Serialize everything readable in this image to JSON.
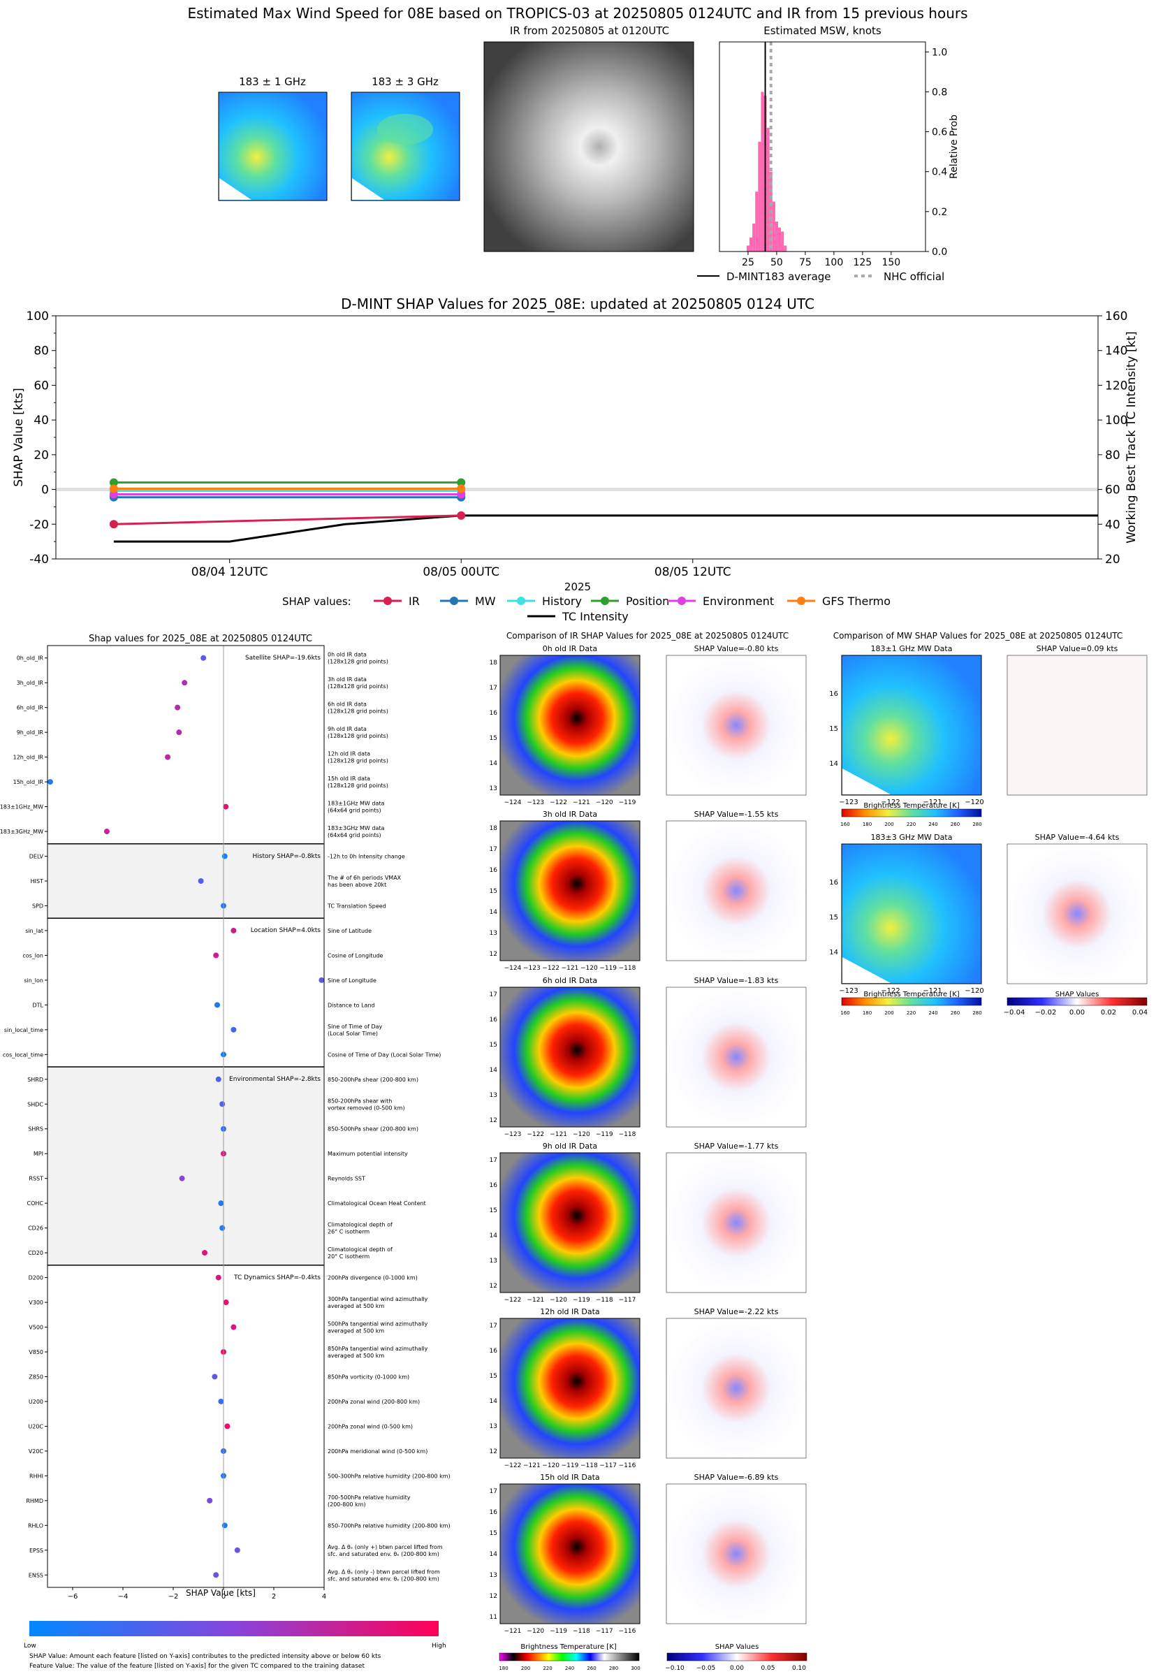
{
  "header": {
    "title": "Estimated Max Wind Speed for 08E based on TROPICS-03 at 20250805 0124UTC and IR from 15 previous hours",
    "mw1_title": "183 ± 1 GHz",
    "mw2_title": "183 ± 3 GHz",
    "ir_title": "IR from 20250805 at 0120UTC",
    "hist_title": "Estimated MSW, knots",
    "hist_ylabel": "Relative Prob",
    "legend_dmint": "D-MINT183 average",
    "legend_nhc": "NHC official"
  },
  "timeline": {
    "title": "D-MINT SHAP Values for 2025_08E: updated at 20250805 0124 UTC",
    "ylabel_left": "SHAP Value [kts]",
    "ylabel_right": "Working Best Track TC Intensity [kt]",
    "year_label": "2025",
    "legend_title": "SHAP values:",
    "legend_tc": "TC Intensity"
  },
  "shap_panel": {
    "title": "Shap values for 2025_08E at 20250805 0124UTC",
    "xlabel": "SHAP Value [kts]",
    "colorbar_low": "Low",
    "colorbar_high": "High",
    "footnote1": "SHAP Value: Amount each feature [listed on Y-axis] contributes to the predicted intensity above or below 60 kts",
    "footnote2": "Feature Value: The value of the feature [listed on Y-axis] for the given TC compared to the training dataset"
  },
  "ir_compare": {
    "title": "Comparison of IR SHAP Values for 2025_08E at 20250805 0124UTC",
    "cbar_bt_label": "Brightness Temperature [K]",
    "cbar_shap_label": "SHAP Values",
    "cbar_bt_ticks": [
      "180",
      "200",
      "220",
      "240",
      "260",
      "280",
      "300"
    ],
    "cbar_shap_ticks": [
      "−0.10",
      "−0.05",
      "0.00",
      "0.05",
      "0.10"
    ],
    "rows": [
      {
        "data_title": "0h old IR Data",
        "shap_title": "SHAP Value=-0.80 kts",
        "yticks": [
          "18",
          "17",
          "16",
          "15",
          "14",
          "13"
        ],
        "xticks": [
          "−124",
          "−123",
          "−122",
          "−121",
          "−120",
          "−119"
        ]
      },
      {
        "data_title": "3h old IR Data",
        "shap_title": "SHAP Value=-1.55 kts",
        "yticks": [
          "18",
          "17",
          "16",
          "15",
          "14",
          "13",
          "12"
        ],
        "xticks": [
          "−124",
          "−123",
          "−122",
          "−121",
          "−120",
          "−119",
          "−118"
        ]
      },
      {
        "data_title": "6h old IR Data",
        "shap_title": "SHAP Value=-1.83 kts",
        "yticks": [
          "17",
          "16",
          "15",
          "14",
          "13",
          "12"
        ],
        "xticks": [
          "−123",
          "−122",
          "−121",
          "−120",
          "−119",
          "−118"
        ]
      },
      {
        "data_title": "9h old IR Data",
        "shap_title": "SHAP Value=-1.77 kts",
        "yticks": [
          "17",
          "16",
          "15",
          "14",
          "13",
          "12"
        ],
        "xticks": [
          "−122",
          "−121",
          "−120",
          "−119",
          "−118",
          "−117"
        ]
      },
      {
        "data_title": "12h old IR Data",
        "shap_title": "SHAP Value=-2.22 kts",
        "yticks": [
          "17",
          "16",
          "15",
          "14",
          "13",
          "12"
        ],
        "xticks": [
          "−122",
          "−121",
          "−120",
          "−119",
          "−118",
          "−117",
          "−116"
        ]
      },
      {
        "data_title": "15h old IR Data",
        "shap_title": "SHAP Value=-6.89 kts",
        "yticks": [
          "17",
          "16",
          "15",
          "14",
          "13",
          "12",
          "11"
        ],
        "xticks": [
          "−121",
          "−120",
          "−119",
          "−118",
          "−117",
          "−116"
        ]
      }
    ]
  },
  "mw_compare": {
    "title": "Comparison of MW SHAP Values for 2025_08E at 20250805 0124UTC",
    "rows": [
      {
        "data_title": "183±1 GHz MW Data",
        "shap_title": "SHAP Value=0.09 kts"
      },
      {
        "data_title": "183±3 GHz MW Data",
        "shap_title": "SHAP Value=-4.64 kts"
      }
    ],
    "yticks": [
      "16",
      "15",
      "14"
    ],
    "xticks": [
      "−123",
      "−122",
      "−121",
      "−120"
    ],
    "cbar_bt_label": "Brightness Temperature [K]",
    "cbar_bt_ticks": [
      "160",
      "180",
      "200",
      "220",
      "240",
      "260",
      "280"
    ],
    "cbar_shap_label": "SHAP Values",
    "cbar_shap_ticks": [
      "−0.04",
      "−0.02",
      "0.00",
      "0.02",
      "0.04"
    ]
  },
  "chart_data": [
    {
      "type": "bar",
      "title": "Estimated MSW, knots",
      "ylabel": "Relative Prob",
      "xlim": [
        0,
        180
      ],
      "ylim": [
        0,
        1.05
      ],
      "xticks": [
        25,
        50,
        75,
        100,
        125,
        150
      ],
      "yticks": [
        0.0,
        0.2,
        0.4,
        0.6,
        0.8,
        1.0
      ],
      "bin_width": 2.5,
      "bins": [
        {
          "x": 25,
          "y": 0.03
        },
        {
          "x": 27.5,
          "y": 0.07
        },
        {
          "x": 30,
          "y": 0.14
        },
        {
          "x": 32.5,
          "y": 0.3
        },
        {
          "x": 35,
          "y": 0.55
        },
        {
          "x": 37.5,
          "y": 0.8
        },
        {
          "x": 40,
          "y": 0.78
        },
        {
          "x": 42.5,
          "y": 0.62
        },
        {
          "x": 45,
          "y": 0.4
        },
        {
          "x": 47.5,
          "y": 0.25
        },
        {
          "x": 50,
          "y": 0.15
        },
        {
          "x": 52.5,
          "y": 0.12
        },
        {
          "x": 55,
          "y": 0.1
        },
        {
          "x": 57.5,
          "y": 0.03
        }
      ],
      "dmint_average": 40,
      "nhc_official": 45,
      "series": [
        {
          "name": "D-MINT183 average",
          "color": "#000000"
        },
        {
          "name": "NHC official",
          "color": "#aaaaaa"
        }
      ]
    },
    {
      "type": "line",
      "title": "D-MINT SHAP Values for 2025_08E: updated at 20250805 0124 UTC",
      "ylabel": "SHAP Value [kts]",
      "y2label": "Working Best Track TC Intensity [kt]",
      "ylim": [
        -40,
        100
      ],
      "y2lim": [
        20,
        160
      ],
      "yticks": [
        -40,
        -20,
        0,
        20,
        40,
        60,
        80,
        100
      ],
      "y2ticks": [
        20,
        40,
        60,
        80,
        100,
        120,
        140,
        160
      ],
      "xlim_hours": [
        -21,
        33
      ],
      "xticks": [
        {
          "h": -12,
          "label": "08/04 12UTC"
        },
        {
          "h": 0,
          "label": "08/05 00UTC"
        },
        {
          "h": 12,
          "label": "08/05 12UTC"
        }
      ],
      "series": [
        {
          "name": "IR",
          "color": "#d62050",
          "points": [
            [
              -18,
              -20
            ],
            [
              0,
              -15
            ]
          ]
        },
        {
          "name": "MW",
          "color": "#1f77b4",
          "points": [
            [
              -18,
              -4.5
            ],
            [
              0,
              -4.5
            ]
          ]
        },
        {
          "name": "History",
          "color": "#3fe0e0",
          "points": [
            [
              -18,
              -0.8
            ],
            [
              0,
              -0.8
            ]
          ]
        },
        {
          "name": "Position",
          "color": "#2ca02c",
          "points": [
            [
              -18,
              4
            ],
            [
              0,
              4
            ]
          ]
        },
        {
          "name": "Environment",
          "color": "#e040e0",
          "points": [
            [
              -18,
              -2.8
            ],
            [
              0,
              -2.8
            ]
          ]
        },
        {
          "name": "GFS Thermo",
          "color": "#ff7f0e",
          "points": [
            [
              -18,
              0.5
            ],
            [
              0,
              0.5
            ]
          ]
        }
      ],
      "tc_intensity": {
        "name": "TC Intensity",
        "color": "#000000",
        "points": [
          [
            -18,
            30
          ],
          [
            -12,
            30
          ],
          [
            -6,
            40
          ],
          [
            0,
            45
          ],
          [
            33,
            45
          ]
        ]
      }
    },
    {
      "type": "scatter",
      "title": "Shap values for 2025_08E at 20250805 0124UTC",
      "xlabel": "SHAP Value [kts]",
      "xlim": [
        -7,
        4
      ],
      "xticks": [
        -6,
        -4,
        -2,
        0,
        2,
        4
      ],
      "groups": [
        {
          "label": "Satellite SHAP=-19.6kts",
          "shaded": false,
          "features": [
            {
              "name": "0h_old_IR",
              "desc": [
                "0h old IR data",
                "(128x128 grid points)"
              ],
              "shap": -0.8,
              "fv": 0.35
            },
            {
              "name": "3h_old_IR",
              "desc": [
                "3h old IR data",
                "(128x128 grid points)"
              ],
              "shap": -1.55,
              "fv": 0.65
            },
            {
              "name": "6h_old_IR",
              "desc": [
                "6h old IR data",
                "(128x128 grid points)"
              ],
              "shap": -1.83,
              "fv": 0.7
            },
            {
              "name": "9h_old_IR",
              "desc": [
                "9h old IR data",
                "(128x128 grid points)"
              ],
              "shap": -1.77,
              "fv": 0.7
            },
            {
              "name": "12h_old_IR",
              "desc": [
                "12h old IR data",
                "(128x128 grid points)"
              ],
              "shap": -2.22,
              "fv": 0.7
            },
            {
              "name": "15h_old_IR",
              "desc": [
                "15h old IR data",
                "(128x128 grid points)"
              ],
              "shap": -6.89,
              "fv": 0.1
            },
            {
              "name": "183±1GHz_MW",
              "desc": [
                "183±1GHz MW data",
                "(64x64 grid points)"
              ],
              "shap": 0.09,
              "fv": 0.9
            },
            {
              "name": "183±3GHz_MW",
              "desc": [
                "183±3GHz MW data",
                "(64x64 grid points)"
              ],
              "shap": -4.64,
              "fv": 0.75
            }
          ]
        },
        {
          "label": "History SHAP=-0.8kts",
          "shaded": true,
          "features": [
            {
              "name": "DELV",
              "desc": [
                "-12h to 0h Intensity change"
              ],
              "shap": 0.05,
              "fv": 0.05
            },
            {
              "name": "HIST",
              "desc": [
                "The # of 6h periods VMAX",
                "has been above 20kt"
              ],
              "shap": -0.9,
              "fv": 0.3
            },
            {
              "name": "SPD",
              "desc": [
                "TC Translation Speed"
              ],
              "shap": 0.0,
              "fv": 0.1
            }
          ]
        },
        {
          "label": "Location SHAP=4.0kts",
          "shaded": false,
          "features": [
            {
              "name": "sin_lat",
              "desc": [
                "Sine of Latitude"
              ],
              "shap": 0.4,
              "fv": 0.8
            },
            {
              "name": "cos_lon",
              "desc": [
                "Cosine of Longitude"
              ],
              "shap": -0.3,
              "fv": 0.8
            },
            {
              "name": "sin_lon",
              "desc": [
                "Sine of Longitude"
              ],
              "shap": 3.9,
              "fv": 0.35
            },
            {
              "name": "DTL",
              "desc": [
                "Distance to Land"
              ],
              "shap": -0.25,
              "fv": 0.1
            },
            {
              "name": "sin_local_time",
              "desc": [
                "Sine of Time of Day",
                "(Local Solar Time)"
              ],
              "shap": 0.4,
              "fv": 0.25
            },
            {
              "name": "cos_local_time",
              "desc": [
                "Cosine of Time of Day (Local Solar Time)"
              ],
              "shap": 0.0,
              "fv": 0.1
            }
          ]
        },
        {
          "label": "Environmental SHAP=-2.8kts",
          "shaded": true,
          "features": [
            {
              "name": "SHRD",
              "desc": [
                "850-200hPa shear (200-800 km)"
              ],
              "shap": -0.2,
              "fv": 0.3
            },
            {
              "name": "SHDC",
              "desc": [
                "850-200hPa shear with",
                "vortex removed (0-500 km)"
              ],
              "shap": -0.05,
              "fv": 0.3
            },
            {
              "name": "SHRS",
              "desc": [
                "850-500hPa shear (200-800 km)"
              ],
              "shap": 0.0,
              "fv": 0.2
            },
            {
              "name": "MPI",
              "desc": [
                "Maximum potential intensity"
              ],
              "shap": 0.0,
              "fv": 0.85
            },
            {
              "name": "RSST",
              "desc": [
                "Reynolds SST"
              ],
              "shap": -1.65,
              "fv": 0.5
            },
            {
              "name": "COHC",
              "desc": [
                "Climatological Ocean Heat Content"
              ],
              "shap": -0.1,
              "fv": 0.1
            },
            {
              "name": "CD26",
              "desc": [
                "Climatological depth of",
                "26° C isotherm"
              ],
              "shap": -0.05,
              "fv": 0.1
            },
            {
              "name": "CD20",
              "desc": [
                "Climatological depth of",
                "20° C isotherm"
              ],
              "shap": -0.75,
              "fv": 0.85
            }
          ]
        },
        {
          "label": "TC Dynamics SHAP=-0.4kts",
          "shaded": false,
          "features": [
            {
              "name": "D200",
              "desc": [
                "200hPa divergence (0-1000 km)"
              ],
              "shap": -0.2,
              "fv": 0.85
            },
            {
              "name": "V300",
              "desc": [
                "300hPa tangential wind azimuthally",
                "averaged at 500 km"
              ],
              "shap": 0.1,
              "fv": 0.9
            },
            {
              "name": "V500",
              "desc": [
                "500hPa tangential wind azimuthally",
                "averaged at 500 km"
              ],
              "shap": 0.4,
              "fv": 0.85
            },
            {
              "name": "V850",
              "desc": [
                "850hPa tangential wind azimuthally",
                "averaged at 500 km"
              ],
              "shap": 0.0,
              "fv": 0.9
            },
            {
              "name": "Z850",
              "desc": [
                "850hPa vorticity (0-1000 km)"
              ],
              "shap": -0.35,
              "fv": 0.35
            },
            {
              "name": "U200",
              "desc": [
                "200hPa zonal wind (200-800 km)"
              ],
              "shap": -0.1,
              "fv": 0.2
            },
            {
              "name": "U20C",
              "desc": [
                "200hPa zonal wind (0-500 km)"
              ],
              "shap": 0.15,
              "fv": 0.9
            },
            {
              "name": "V20C",
              "desc": [
                "200hPa meridional wind (0-500 km)"
              ],
              "shap": 0.0,
              "fv": 0.15
            },
            {
              "name": "RHHI",
              "desc": [
                "500-300hPa relative humidity (200-800 km)"
              ],
              "shap": 0.0,
              "fv": 0.1
            },
            {
              "name": "RHMD",
              "desc": [
                "700-500hPa relative humidity",
                "(200-800 km)"
              ],
              "shap": -0.55,
              "fv": 0.45
            },
            {
              "name": "RHLO",
              "desc": [
                "850-700hPa relative humidity (200-800 km)"
              ],
              "shap": 0.05,
              "fv": 0.1
            },
            {
              "name": "EPSS",
              "desc": [
                "Avg. Δ θₑ (only +) btwn parcel lifted from",
                "sfc. and saturated env. θₑ (200-800 km)"
              ],
              "shap": 0.55,
              "fv": 0.4
            },
            {
              "name": "ENSS",
              "desc": [
                "Avg. Δ θₑ (only -) btwn parcel lifted from",
                "sfc. and saturated env. θₑ (200-800 km)"
              ],
              "shap": -0.3,
              "fv": 0.4
            }
          ]
        }
      ]
    }
  ]
}
